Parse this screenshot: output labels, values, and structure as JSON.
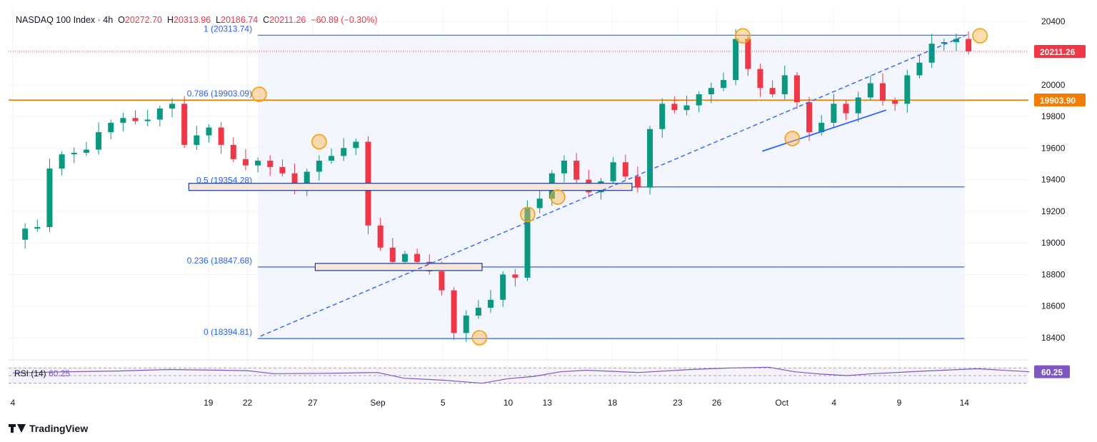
{
  "header": {
    "symbol": "NASDAQ 100 Index",
    "sep": " · ",
    "interval": "4h",
    "open_label": "O",
    "open": "20272.70",
    "high_label": "H",
    "high": "20313.96",
    "low_label": "L",
    "low": "20186.74",
    "close_label": "C",
    "close": "20211.26",
    "change": "−60.89 (−0.30%)"
  },
  "rsi": {
    "label": "RSI (14)",
    "value": "60.25"
  },
  "brand": {
    "name": "TradingView"
  },
  "colors": {
    "up": "#089981",
    "down": "#f23645",
    "fib": "#2962ff",
    "highlight": "#f57c00",
    "rsi": "#7e57c2"
  },
  "chart_data": {
    "type": "candlestick",
    "title": "NASDAQ 100 Index, 4h",
    "ylim": [
      18250,
      20500
    ],
    "y_ticks": [
      18400,
      18600,
      18800,
      19000,
      19200,
      19400,
      19600,
      19800,
      20000,
      20200,
      20400
    ],
    "x_ticks": [
      {
        "label": "4",
        "day": 0
      },
      {
        "label": "19",
        "day": 15
      },
      {
        "label": "22",
        "day": 18
      },
      {
        "label": "27",
        "day": 23
      },
      {
        "label": "Sep",
        "day": 28
      },
      {
        "label": "5",
        "day": 33
      },
      {
        "label": "10",
        "day": 38
      },
      {
        "label": "13",
        "day": 41
      },
      {
        "label": "18",
        "day": 46
      },
      {
        "label": "23",
        "day": 51
      },
      {
        "label": "26",
        "day": 54
      },
      {
        "label": "Oct",
        "day": 59
      },
      {
        "label": "4",
        "day": 63
      },
      {
        "label": "9",
        "day": 68
      },
      {
        "label": "14",
        "day": 73
      }
    ],
    "fib_levels": [
      {
        "ratio": "1",
        "value": "20313.74"
      },
      {
        "ratio": "0.786",
        "value": "19903.09"
      },
      {
        "ratio": "0.5",
        "value": "19354.28"
      },
      {
        "ratio": "0.236",
        "value": "18847.68"
      },
      {
        "ratio": "0",
        "value": "18394.81"
      }
    ],
    "price_labels": {
      "last": "20211.26",
      "level": "19903.90"
    },
    "price_points": [
      [
        0,
        19020
      ],
      [
        1,
        19090
      ],
      [
        2,
        19100
      ],
      [
        3,
        19470
      ],
      [
        4,
        19560
      ],
      [
        5,
        19570
      ],
      [
        6,
        19590
      ],
      [
        7,
        19700
      ],
      [
        8,
        19760
      ],
      [
        9,
        19790
      ],
      [
        10,
        19770
      ],
      [
        11,
        19780
      ],
      [
        12,
        19850
      ],
      [
        13,
        19880
      ],
      [
        14,
        19620
      ],
      [
        15,
        19680
      ],
      [
        16,
        19730
      ],
      [
        17,
        19620
      ],
      [
        18,
        19530
      ],
      [
        19,
        19490
      ],
      [
        20,
        19520
      ],
      [
        21,
        19480
      ],
      [
        22,
        19440
      ],
      [
        23,
        19340
      ],
      [
        24,
        19450
      ],
      [
        25,
        19520
      ],
      [
        26,
        19550
      ],
      [
        27,
        19600
      ],
      [
        28,
        19640
      ],
      [
        29,
        19110
      ],
      [
        30,
        18970
      ],
      [
        31,
        18880
      ],
      [
        32,
        18930
      ],
      [
        33,
        18880
      ],
      [
        34,
        18820
      ],
      [
        35,
        18700
      ],
      [
        36,
        18430
      ],
      [
        37,
        18540
      ],
      [
        38,
        18590
      ],
      [
        39,
        18640
      ],
      [
        40,
        18800
      ],
      [
        41,
        18780
      ],
      [
        42,
        19220
      ],
      [
        43,
        19280
      ],
      [
        44,
        19440
      ],
      [
        45,
        19520
      ],
      [
        46,
        19400
      ],
      [
        47,
        19320
      ],
      [
        48,
        19390
      ],
      [
        49,
        19510
      ],
      [
        50,
        19420
      ],
      [
        51,
        19350
      ],
      [
        52,
        19720
      ],
      [
        53,
        19880
      ],
      [
        54,
        19840
      ],
      [
        55,
        19870
      ],
      [
        56,
        19940
      ],
      [
        57,
        19980
      ],
      [
        58,
        20030
      ],
      [
        59,
        20290
      ],
      [
        60,
        20100
      ],
      [
        61,
        19980
      ],
      [
        62,
        19940
      ],
      [
        63,
        20060
      ],
      [
        64,
        19890
      ],
      [
        65,
        19700
      ],
      [
        66,
        19760
      ],
      [
        67,
        19880
      ],
      [
        68,
        19820
      ],
      [
        69,
        19920
      ],
      [
        70,
        20010
      ],
      [
        71,
        19900
      ],
      [
        72,
        19880
      ],
      [
        73,
        20060
      ],
      [
        74,
        20140
      ],
      [
        75,
        20260
      ],
      [
        76,
        20270
      ],
      [
        77,
        20290
      ],
      [
        78,
        20211
      ]
    ],
    "rsi_points": [
      [
        0,
        57
      ],
      [
        4,
        60
      ],
      [
        8,
        62
      ],
      [
        12,
        66
      ],
      [
        16,
        64
      ],
      [
        18,
        63
      ],
      [
        20,
        55
      ],
      [
        24,
        56
      ],
      [
        28,
        58
      ],
      [
        30,
        43
      ],
      [
        33,
        38
      ],
      [
        36,
        30
      ],
      [
        38,
        42
      ],
      [
        40,
        48
      ],
      [
        42,
        60
      ],
      [
        44,
        64
      ],
      [
        48,
        58
      ],
      [
        52,
        66
      ],
      [
        55,
        70
      ],
      [
        58,
        72
      ],
      [
        60,
        60
      ],
      [
        62,
        54
      ],
      [
        64,
        50
      ],
      [
        66,
        55
      ],
      [
        70,
        62
      ],
      [
        74,
        68
      ],
      [
        78,
        60
      ]
    ],
    "rsi_range": [
      20,
      80
    ]
  }
}
